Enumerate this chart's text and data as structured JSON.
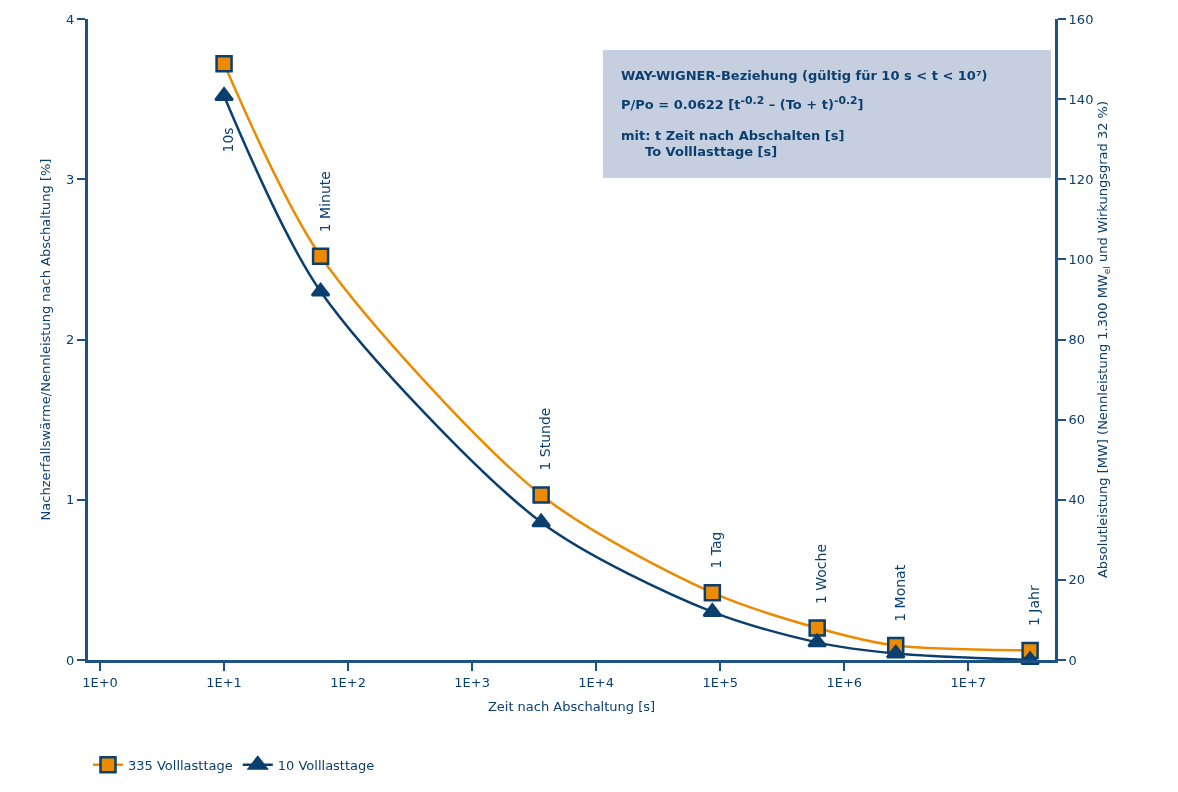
{
  "chart_data": {
    "type": "line",
    "xlabel": "Zeit nach Abschaltung [s]",
    "ylabel": "Nachzerfallswärme/Nennleistung nach Abschaltung [%]",
    "y2label": "Absolutleistung [MW] (Nennleistung 1.300 MW$_{el}$ und Wirkungsgrad 32 %)",
    "log": "x",
    "grid": false,
    "legend": "bottom left",
    "line_style": "solid",
    "xlim": [
      0.8,
      50000000
    ],
    "xticks": [
      {
        "value": 1,
        "label": "1E+0"
      },
      {
        "value": 10,
        "label": "1E+1"
      },
      {
        "value": 100,
        "label": "1E+2"
      },
      {
        "value": 1000,
        "label": "1E+3"
      },
      {
        "value": 10000,
        "label": "1E+4"
      },
      {
        "value": 100000,
        "label": "1E+5"
      },
      {
        "value": 1000000,
        "label": "1E+6"
      },
      {
        "value": 10000000,
        "label": "1E+7"
      }
    ],
    "ylim": [
      0,
      4
    ],
    "yticks": [
      0,
      1,
      2,
      3,
      4
    ],
    "y2lim": [
      0,
      160
    ],
    "y2ticks": [
      0,
      20,
      40,
      60,
      80,
      100,
      120,
      140,
      160
    ],
    "x": [
      10,
      60,
      3600,
      86400,
      604800,
      2600000,
      31500000
    ],
    "series": [
      {
        "name": "335 Volllasttage",
        "color": "#ec8b00",
        "marker": "square",
        "values": [
          3.72,
          2.52,
          1.03,
          0.42,
          0.2,
          0.09,
          0.06
        ]
      },
      {
        "name": "10 Volllasttage",
        "color": "#0b3f6e",
        "marker": "triangle",
        "values": [
          3.52,
          2.3,
          0.86,
          0.3,
          0.11,
          0.04,
          0.0
        ]
      }
    ],
    "annotations": [
      "10s",
      "1 Minute",
      "1 Stunde",
      "1 Tag",
      "1 Woche",
      "1 Monat",
      "1 Jahr",
      "WAY-WIGNER-Beziehung (gültig für 10 s < t < 10⁷)",
      "P/Po = 0.0622 [t$^{-0.2}$ – (To + t)$^{-0.2}$]",
      "mit: t    Zeit nach Abschalten [s]",
      "To    Volllasttage [s]"
    ]
  }
}
